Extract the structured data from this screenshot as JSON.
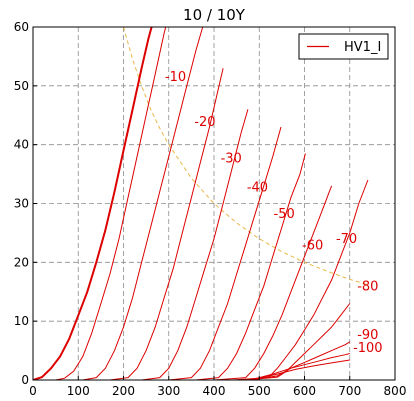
{
  "chart_data": {
    "type": "line",
    "title": "10 / 10Y",
    "xlabel": "",
    "ylabel": "",
    "xlim": [
      0,
      800
    ],
    "ylim": [
      0,
      60
    ],
    "xticks": [
      "0",
      "100",
      "200",
      "300",
      "400",
      "500",
      "600",
      "700",
      "800"
    ],
    "yticks": [
      "0",
      "10",
      "20",
      "30",
      "40",
      "50",
      "60"
    ],
    "grid": true,
    "legend": {
      "position": "top-right",
      "entries": [
        "HV1_I"
      ]
    },
    "colors": {
      "curves": "#dd0000",
      "dissipation": "#e8b84a",
      "axes": "#000000",
      "grid": "#8c8c8c"
    },
    "series": [
      {
        "label": "",
        "bold": true,
        "points": [
          [
            0,
            0
          ],
          [
            20,
            0.5
          ],
          [
            40,
            2
          ],
          [
            60,
            4
          ],
          [
            80,
            7
          ],
          [
            100,
            11
          ],
          [
            120,
            15
          ],
          [
            140,
            20
          ],
          [
            160,
            25.5
          ],
          [
            180,
            32
          ],
          [
            200,
            39
          ],
          [
            220,
            46
          ],
          [
            240,
            53
          ],
          [
            255,
            58
          ],
          [
            262,
            60
          ]
        ]
      },
      {
        "label": "-10",
        "points": [
          [
            50,
            0
          ],
          [
            70,
            0.3
          ],
          [
            90,
            1.5
          ],
          [
            110,
            4
          ],
          [
            130,
            8
          ],
          [
            150,
            13
          ],
          [
            170,
            18
          ],
          [
            190,
            24
          ],
          [
            210,
            31
          ],
          [
            230,
            38
          ],
          [
            250,
            45
          ],
          [
            270,
            52
          ],
          [
            290,
            59
          ],
          [
            300,
            62
          ]
        ]
      },
      {
        "label": "-20",
        "points": [
          [
            110,
            0
          ],
          [
            140,
            0.4
          ],
          [
            160,
            2
          ],
          [
            180,
            5
          ],
          [
            200,
            9
          ],
          [
            220,
            14
          ],
          [
            240,
            20
          ],
          [
            260,
            26
          ],
          [
            280,
            32
          ],
          [
            300,
            38
          ],
          [
            320,
            44
          ],
          [
            340,
            50
          ],
          [
            360,
            56
          ],
          [
            375,
            60
          ]
        ]
      },
      {
        "label": "-30",
        "points": [
          [
            170,
            0
          ],
          [
            210,
            0.4
          ],
          [
            230,
            2
          ],
          [
            250,
            5
          ],
          [
            270,
            9
          ],
          [
            290,
            14
          ],
          [
            310,
            19
          ],
          [
            330,
            25
          ],
          [
            350,
            31
          ],
          [
            370,
            37
          ],
          [
            390,
            43
          ],
          [
            405,
            48
          ],
          [
            420,
            53
          ]
        ]
      },
      {
        "label": "-40",
        "points": [
          [
            240,
            0
          ],
          [
            280,
            0.4
          ],
          [
            300,
            2
          ],
          [
            320,
            5
          ],
          [
            340,
            9
          ],
          [
            360,
            14
          ],
          [
            380,
            19
          ],
          [
            400,
            24
          ],
          [
            420,
            30
          ],
          [
            440,
            36
          ],
          [
            460,
            42
          ],
          [
            475,
            46
          ]
        ]
      },
      {
        "label": "-50",
        "points": [
          [
            300,
            0
          ],
          [
            350,
            0.4
          ],
          [
            370,
            2
          ],
          [
            390,
            5
          ],
          [
            410,
            9
          ],
          [
            430,
            13
          ],
          [
            450,
            18
          ],
          [
            470,
            23
          ],
          [
            490,
            28
          ],
          [
            510,
            33
          ],
          [
            530,
            38
          ],
          [
            548,
            43
          ]
        ]
      },
      {
        "label": "-60",
        "points": [
          [
            360,
            0
          ],
          [
            410,
            0.4
          ],
          [
            430,
            2
          ],
          [
            450,
            4.5
          ],
          [
            470,
            8
          ],
          [
            490,
            12
          ],
          [
            510,
            16
          ],
          [
            530,
            21
          ],
          [
            550,
            26
          ],
          [
            570,
            31
          ],
          [
            590,
            35
          ],
          [
            602,
            38.5
          ]
        ]
      },
      {
        "label": "-70",
        "points": [
          [
            400,
            0
          ],
          [
            470,
            0.4
          ],
          [
            490,
            2
          ],
          [
            510,
            4.5
          ],
          [
            530,
            7.5
          ],
          [
            550,
            11
          ],
          [
            570,
            15
          ],
          [
            590,
            19
          ],
          [
            610,
            23
          ],
          [
            630,
            27
          ],
          [
            650,
            31
          ],
          [
            660,
            33
          ]
        ]
      },
      {
        "label": "-80",
        "points": [
          [
            440,
            0
          ],
          [
            520,
            0.4
          ],
          [
            540,
            2
          ],
          [
            560,
            4
          ],
          [
            580,
            6
          ],
          [
            600,
            8.5
          ],
          [
            620,
            11
          ],
          [
            640,
            14
          ],
          [
            660,
            17
          ],
          [
            680,
            21
          ],
          [
            700,
            25
          ],
          [
            720,
            30
          ],
          [
            740,
            34
          ]
        ]
      },
      {
        "label": "-90",
        "points": [
          [
            470,
            0
          ],
          [
            540,
            0.5
          ],
          [
            560,
            1.5
          ],
          [
            580,
            3
          ],
          [
            600,
            4.5
          ],
          [
            620,
            6
          ],
          [
            640,
            7.5
          ],
          [
            660,
            9
          ],
          [
            680,
            11
          ],
          [
            700,
            13
          ]
        ]
      },
      {
        "label": "-100",
        "points": [
          [
            480,
            0
          ],
          [
            540,
            0.7
          ],
          [
            570,
            2
          ],
          [
            600,
            3
          ],
          [
            630,
            4
          ],
          [
            660,
            5
          ],
          [
            690,
            6
          ],
          [
            700,
            6.5
          ]
        ]
      },
      {
        "label": "",
        "points": [
          [
            480,
            0
          ],
          [
            530,
            1
          ],
          [
            570,
            2
          ],
          [
            600,
            2.6
          ],
          [
            630,
            3.2
          ],
          [
            660,
            3.8
          ],
          [
            690,
            4.3
          ],
          [
            700,
            4.5
          ]
        ]
      },
      {
        "label": "",
        "points": [
          [
            480,
            0
          ],
          [
            540,
            1
          ],
          [
            580,
            1.8
          ],
          [
            620,
            2.4
          ],
          [
            660,
            2.9
          ],
          [
            700,
            3.4
          ]
        ]
      }
    ],
    "dissipation_curve": {
      "label": "",
      "points": [
        [
          200,
          60
        ],
        [
          220,
          54.5
        ],
        [
          240,
          50
        ],
        [
          260,
          46
        ],
        [
          280,
          42.8
        ],
        [
          300,
          40
        ],
        [
          350,
          34.3
        ],
        [
          400,
          30
        ],
        [
          450,
          26.7
        ],
        [
          500,
          24
        ],
        [
          550,
          21.8
        ],
        [
          600,
          20
        ],
        [
          650,
          18.5
        ],
        [
          700,
          17.1
        ],
        [
          740,
          16.2
        ]
      ]
    },
    "curve_labels": [
      {
        "text": "-10",
        "x": 315,
        "y": 50.8
      },
      {
        "text": "-20",
        "x": 380,
        "y": 43.2
      },
      {
        "text": "-30",
        "x": 438,
        "y": 37.0
      },
      {
        "text": "-40",
        "x": 496,
        "y": 32.0
      },
      {
        "text": "-50",
        "x": 555,
        "y": 27.5
      },
      {
        "text": "-60",
        "x": 618,
        "y": 22.2
      },
      {
        "text": "-70",
        "x": 693,
        "y": 23.3
      },
      {
        "text": "-80",
        "x": 740,
        "y": 15.2
      },
      {
        "text": "-90",
        "x": 740,
        "y": 7.0
      },
      {
        "text": "-100",
        "x": 740,
        "y": 4.8
      }
    ]
  }
}
